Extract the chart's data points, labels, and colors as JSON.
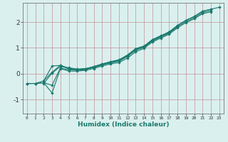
{
  "xlabel": "Humidex (Indice chaleur)",
  "ylabel": "",
  "bg_color": "#daf0ee",
  "line_color": "#1a7a6e",
  "grid_color": "#c8a0a8",
  "xlim": [
    -0.5,
    23.5
  ],
  "ylim": [
    -1.55,
    2.75
  ],
  "xticks": [
    0,
    1,
    2,
    3,
    4,
    5,
    6,
    7,
    8,
    9,
    10,
    11,
    12,
    13,
    14,
    15,
    16,
    17,
    18,
    19,
    20,
    21,
    22,
    23
  ],
  "yticks": [
    -1,
    0,
    1,
    2
  ],
  "series": [
    [
      [
        0,
        -0.38
      ],
      [
        1,
        -0.38
      ],
      [
        2,
        -0.28
      ],
      [
        3,
        0.3
      ],
      [
        4,
        0.32
      ],
      [
        5,
        0.18
      ],
      [
        6,
        0.15
      ],
      [
        7,
        0.18
      ],
      [
        8,
        0.28
      ],
      [
        9,
        0.38
      ],
      [
        10,
        0.45
      ],
      [
        11,
        0.52
      ],
      [
        12,
        0.72
      ],
      [
        13,
        0.97
      ],
      [
        14,
        1.07
      ],
      [
        15,
        1.32
      ],
      [
        16,
        1.47
      ],
      [
        17,
        1.62
      ],
      [
        18,
        1.87
      ],
      [
        19,
        2.07
      ],
      [
        20,
        2.22
      ],
      [
        21,
        2.42
      ],
      [
        22,
        2.5
      ],
      [
        23,
        2.58
      ]
    ],
    [
      [
        0,
        -0.38
      ],
      [
        1,
        -0.38
      ],
      [
        2,
        -0.35
      ],
      [
        3,
        -0.45
      ],
      [
        4,
        0.22
      ],
      [
        5,
        0.15
      ],
      [
        6,
        0.13
      ],
      [
        7,
        0.16
      ],
      [
        8,
        0.24
      ],
      [
        9,
        0.34
      ],
      [
        10,
        0.42
      ],
      [
        11,
        0.48
      ],
      [
        12,
        0.66
      ],
      [
        13,
        0.91
      ],
      [
        14,
        1.02
      ],
      [
        15,
        1.27
      ],
      [
        16,
        1.42
      ],
      [
        17,
        1.57
      ],
      [
        18,
        1.82
      ],
      [
        19,
        2.02
      ],
      [
        20,
        2.17
      ],
      [
        21,
        2.37
      ],
      [
        22,
        2.45
      ]
    ],
    [
      [
        0,
        -0.38
      ],
      [
        1,
        -0.38
      ],
      [
        2,
        -0.35
      ],
      [
        3,
        -0.75
      ],
      [
        4,
        0.2
      ],
      [
        5,
        0.1
      ],
      [
        6,
        0.1
      ],
      [
        7,
        0.13
      ],
      [
        8,
        0.2
      ],
      [
        9,
        0.3
      ],
      [
        10,
        0.38
      ],
      [
        11,
        0.43
      ],
      [
        12,
        0.6
      ],
      [
        13,
        0.85
      ],
      [
        14,
        0.98
      ],
      [
        15,
        1.23
      ],
      [
        16,
        1.38
      ],
      [
        17,
        1.53
      ],
      [
        18,
        1.78
      ],
      [
        19,
        1.98
      ],
      [
        20,
        2.13
      ],
      [
        21,
        2.33
      ],
      [
        22,
        2.4
      ]
    ],
    [
      [
        2,
        -0.38
      ],
      [
        3,
        0.02
      ],
      [
        4,
        0.28
      ],
      [
        5,
        0.23
      ],
      [
        6,
        0.18
      ],
      [
        7,
        0.2
      ],
      [
        8,
        0.27
      ],
      [
        9,
        0.37
      ],
      [
        10,
        0.47
      ],
      [
        11,
        0.54
      ],
      [
        12,
        0.72
      ],
      [
        13,
        0.97
      ],
      [
        14,
        1.07
      ],
      [
        15,
        1.32
      ],
      [
        16,
        1.47
      ],
      [
        17,
        1.62
      ],
      [
        18,
        1.87
      ],
      [
        19,
        2.07
      ],
      [
        20,
        2.22
      ],
      [
        21,
        2.43
      ],
      [
        22,
        2.5
      ]
    ],
    [
      [
        2,
        -0.28
      ],
      [
        3,
        0.06
      ],
      [
        4,
        0.33
      ],
      [
        5,
        0.21
      ],
      [
        6,
        0.16
      ],
      [
        7,
        0.19
      ],
      [
        8,
        0.25
      ],
      [
        9,
        0.35
      ],
      [
        10,
        0.44
      ],
      [
        11,
        0.51
      ],
      [
        12,
        0.69
      ],
      [
        13,
        0.94
      ],
      [
        14,
        1.04
      ],
      [
        15,
        1.29
      ],
      [
        16,
        1.44
      ],
      [
        17,
        1.59
      ],
      [
        18,
        1.84
      ]
    ]
  ]
}
